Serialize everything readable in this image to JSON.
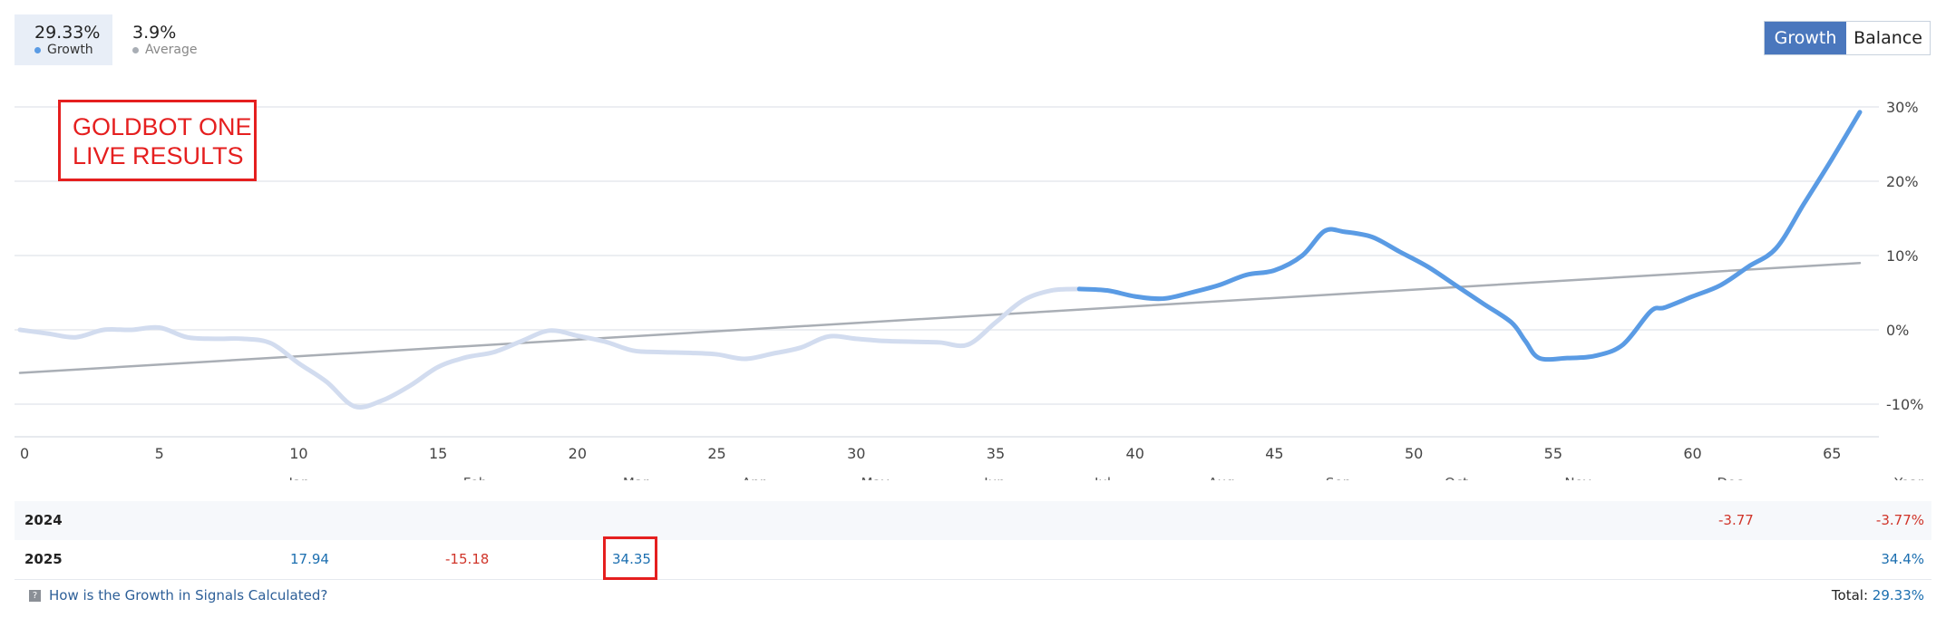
{
  "stats": {
    "growth": {
      "value": "29.33%",
      "label": "Growth",
      "color": "#5a9be4"
    },
    "average": {
      "value": "3.9%",
      "label": "Average",
      "color": "#a9aeb5"
    }
  },
  "toggle": {
    "growth_label": "Growth",
    "balance_label": "Balance"
  },
  "annotation": {
    "line1": "GOLDBOT ONE",
    "line2": "LIVE RESULTS"
  },
  "chart_data": {
    "type": "line",
    "x_ticks": [
      0,
      5,
      10,
      15,
      20,
      25,
      30,
      35,
      40,
      45,
      50,
      55,
      60,
      65
    ],
    "y_ticks": [
      30,
      20,
      10,
      0,
      -10
    ],
    "y_tick_labels": [
      "30%",
      "20%",
      "10%",
      "0%",
      "-10%"
    ],
    "xlim": [
      0,
      66
    ],
    "ylim": [
      -14,
      33
    ],
    "grid": true,
    "series": [
      {
        "color": "#d2dcef",
        "x": [
          0,
          1,
          2,
          3,
          4,
          5,
          6,
          7,
          8,
          9,
          10,
          11,
          12,
          13,
          14,
          15,
          16,
          17,
          18,
          19,
          20,
          21,
          22,
          23,
          24,
          25,
          26,
          27,
          28,
          29,
          30,
          31,
          32,
          33,
          34,
          35,
          36,
          37,
          38
        ],
        "y": [
          0,
          -0.5,
          -1,
          0,
          0,
          0.3,
          -1,
          -1.2,
          -1.2,
          -1.8,
          -4.5,
          -7,
          -10.3,
          -9.5,
          -7.5,
          -5,
          -3.7,
          -3,
          -1.5,
          -0.1,
          -0.8,
          -1.6,
          -2.8,
          -3,
          -3.1,
          -3.3,
          -3.9,
          -3.2,
          -2.4,
          -0.9,
          -1.2,
          -1.5,
          -1.6,
          -1.7,
          -2,
          1,
          4,
          5.3,
          5.5
        ]
      },
      {
        "color": "#5a9be4",
        "x": [
          38,
          39,
          40,
          41,
          42,
          43,
          44,
          45,
          46,
          46.8,
          47.5,
          48.5,
          49.5,
          50.5,
          51.5,
          52.5,
          53.5,
          54,
          54.5,
          55.5,
          56.5,
          57.5,
          58.5,
          59,
          60,
          61,
          62,
          63,
          64,
          65,
          66
        ],
        "y": [
          5.5,
          5.3,
          4.5,
          4.2,
          5,
          6,
          7.4,
          8,
          10,
          13.3,
          13.2,
          12.5,
          10.5,
          8.5,
          6,
          3.5,
          1,
          -1.5,
          -3.8,
          -3.8,
          -3.5,
          -2,
          2.5,
          3,
          4.5,
          6,
          8.5,
          11,
          17,
          23,
          29.3
        ]
      },
      {
        "color": "#a9aeb5",
        "x": [
          0,
          66
        ],
        "y": [
          -5.8,
          9
        ]
      }
    ],
    "month_labels": [
      "Jan",
      "Feb",
      "Mar",
      "Apr",
      "May",
      "Jun",
      "Jul",
      "Aug",
      "Sep",
      "Oct",
      "Nov",
      "Dec",
      "Year"
    ]
  },
  "table": {
    "rows": [
      {
        "year": "2024",
        "dec": "-3.77",
        "total": "-3.77%"
      },
      {
        "year": "2025",
        "jan": "17.94",
        "feb": "-15.18",
        "mar": "34.35",
        "total": "34.4%"
      }
    ]
  },
  "footer": {
    "link": "How is the Growth in Signals Calculated?",
    "total_label": "Total:",
    "total_value": "29.33%"
  }
}
